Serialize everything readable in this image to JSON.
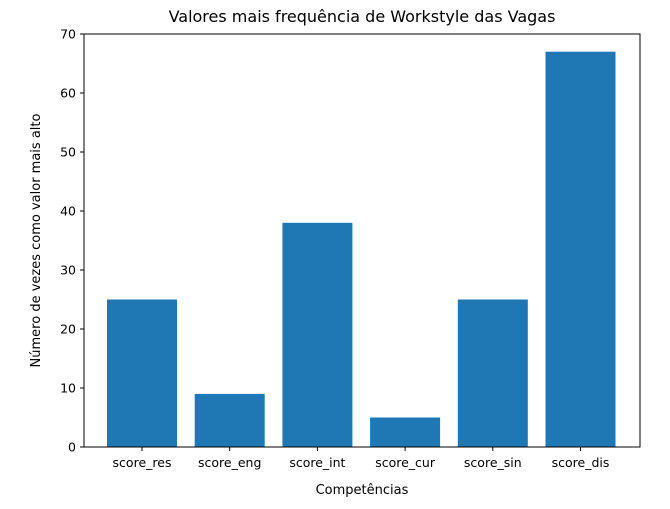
{
  "chart_data": {
    "type": "bar",
    "title": "Valores mais frequência de Workstyle das Vagas",
    "xlabel": "Competências",
    "ylabel": "Número de vezes como valor mais alto",
    "categories": [
      "score_res",
      "score_eng",
      "score_int",
      "score_cur",
      "score_sin",
      "score_dis"
    ],
    "values": [
      25,
      9,
      38,
      5,
      25,
      67
    ],
    "ylim": [
      0,
      70
    ],
    "yticks": [
      0,
      10,
      20,
      30,
      40,
      50,
      60,
      70
    ],
    "bar_color": "#1f77b4",
    "grid": false,
    "legend": "none"
  }
}
